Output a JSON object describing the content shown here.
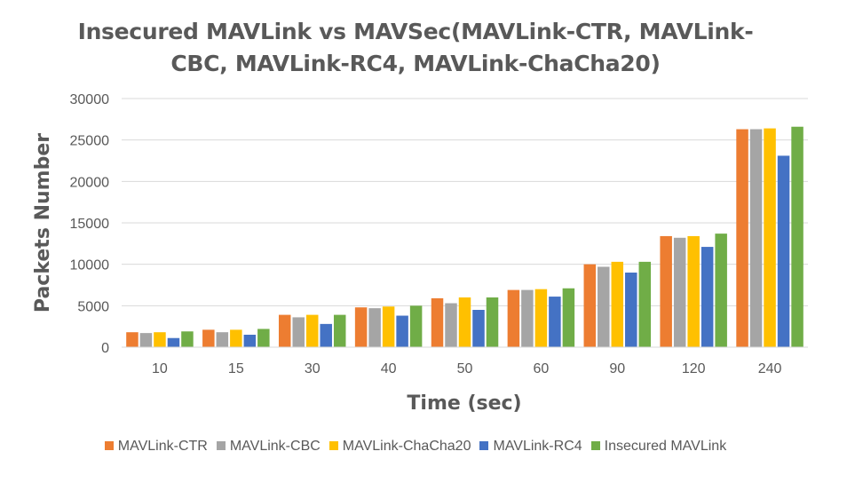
{
  "chart_data": {
    "type": "bar",
    "title_lines": [
      "Insecured MAVLink vs MAVSec(MAVLink-CTR, MAVLink-",
      "CBC, MAVLink-RC4, MAVLink-ChaCha20)"
    ],
    "xlabel": "Time (sec)",
    "ylabel": "Packets Number",
    "categories": [
      "10",
      "15",
      "30",
      "40",
      "50",
      "60",
      "90",
      "120",
      "240"
    ],
    "ylim": [
      0,
      30000
    ],
    "yticks": [
      "0",
      "5000",
      "10000",
      "15000",
      "20000",
      "25000",
      "30000"
    ],
    "grid": true,
    "legend_position": "bottom",
    "series": [
      {
        "name": "MAVLink-CTR",
        "color": "#ED7D31",
        "values": [
          1800,
          2100,
          3900,
          4800,
          5900,
          6900,
          10000,
          13400,
          26300
        ]
      },
      {
        "name": "MAVLink-CBC",
        "color": "#A5A5A5",
        "values": [
          1700,
          1800,
          3600,
          4700,
          5300,
          6900,
          9700,
          13200,
          26300
        ]
      },
      {
        "name": "MAVLink-ChaCha20",
        "color": "#FFC000",
        "values": [
          1800,
          2100,
          3900,
          4900,
          6000,
          7000,
          10300,
          13400,
          26400
        ]
      },
      {
        "name": "MAVLink-RC4",
        "color": "#4472C4",
        "values": [
          1100,
          1500,
          2800,
          3800,
          4500,
          6100,
          9000,
          12100,
          23100
        ]
      },
      {
        "name": "Insecured MAVLink",
        "color": "#70AD47",
        "values": [
          1900,
          2200,
          3900,
          5000,
          6000,
          7100,
          10300,
          13700,
          26600
        ]
      }
    ]
  }
}
